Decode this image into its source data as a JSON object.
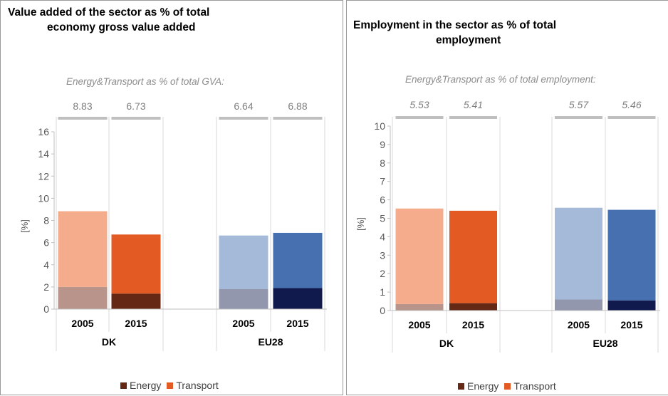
{
  "colors": {
    "dk_transport_2005": "#f4ac8c",
    "dk_energy_2005": "#b8948a",
    "dk_transport_2015": "#e45a23",
    "dk_energy_2015": "#652814",
    "eu_transport_2005": "#a5b9d8",
    "eu_energy_2005": "#9397ad",
    "eu_transport_2015": "#4670b0",
    "eu_energy_2015": "#101a4c",
    "legend_energy": "#652814",
    "legend_transport": "#e45a23",
    "total_bar": "#bfbfbf",
    "axis": "#bfbfbf"
  },
  "legend": {
    "energy": "Energy",
    "transport": "Transport"
  },
  "panels": {
    "left": {
      "title_line1": "Value added of the sector as % of total",
      "title_line2": "economy gross value added",
      "subtitle": "Energy&Transport as % of total GVA:"
    },
    "right": {
      "title_line1": "Employment in the sector as % of total",
      "title_line2": "employment",
      "subtitle": "Energy&Transport as % of total employment:"
    }
  },
  "chart_data": [
    {
      "type": "bar",
      "stacked": true,
      "title": "Value added of the sector as % of total economy gross value added",
      "subtitle": "Energy&Transport as % of total GVA:",
      "ylabel": "[%]",
      "ylim": [
        0,
        16
      ],
      "yticks": [
        0,
        2,
        4,
        6,
        8,
        10,
        12,
        14,
        16
      ],
      "groups": [
        "DK",
        "EU28"
      ],
      "categories": [
        "2005",
        "2015",
        "2005",
        "2015"
      ],
      "totals_labels": [
        "8.83",
        "6.73",
        "6.64",
        "6.88"
      ],
      "totals_italic": false,
      "series": [
        {
          "name": "Energy",
          "values": [
            2.0,
            1.4,
            1.8,
            1.9
          ]
        },
        {
          "name": "Transport",
          "values": [
            6.83,
            5.33,
            4.84,
            4.98
          ]
        }
      ],
      "grid": false,
      "legend_position": "bottom"
    },
    {
      "type": "bar",
      "stacked": true,
      "title": "Employment in the sector as % of total employment",
      "subtitle": "Energy&Transport as % of total employment:",
      "ylabel": "[%]",
      "ylim": [
        0,
        10
      ],
      "yticks": [
        0,
        1,
        2,
        3,
        4,
        5,
        6,
        7,
        8,
        9,
        10
      ],
      "groups": [
        "DK",
        "EU28"
      ],
      "categories": [
        "2005",
        "2015",
        "2005",
        "2015"
      ],
      "totals_labels": [
        "5.53",
        "5.41",
        "5.57",
        "5.46"
      ],
      "totals_italic": true,
      "series": [
        {
          "name": "Energy",
          "values": [
            0.35,
            0.4,
            0.6,
            0.55
          ]
        },
        {
          "name": "Transport",
          "values": [
            5.18,
            5.01,
            4.97,
            4.91
          ]
        }
      ],
      "grid": false,
      "legend_position": "bottom"
    }
  ]
}
